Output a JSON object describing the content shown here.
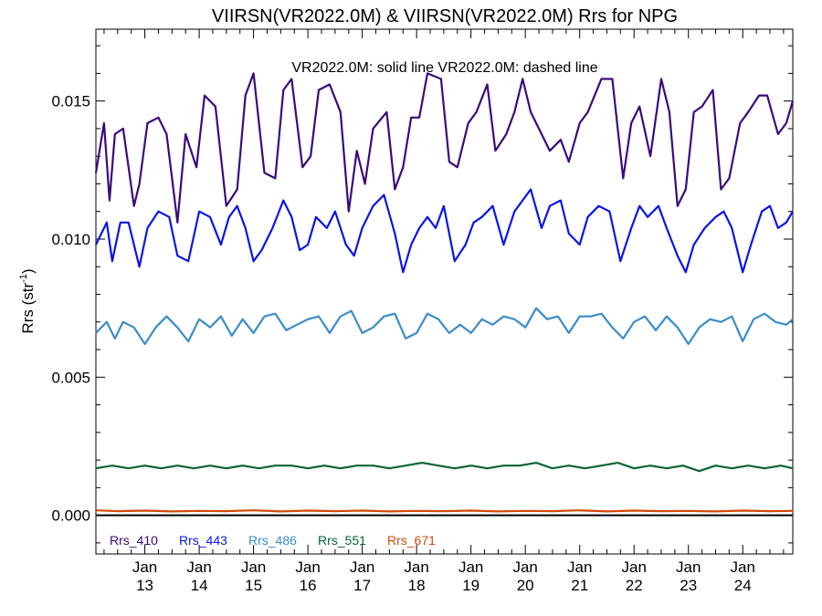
{
  "chart_data": {
    "type": "line",
    "title": "VIIRSN(VR2022.0M) & VIIRSN(VR2022.0M)  Rrs for NPG",
    "annotation": "VR2022.0M: solid line   VR2022.0M: dashed line",
    "xlabel": "",
    "ylabel": "Rrs (str",
    "ylabel_sup": "-1",
    "ylabel_close": ")",
    "x_range": [
      2012.1,
      2024.92
    ],
    "ylim": [
      -0.0014,
      0.0176
    ],
    "y_ticks": [
      0.0,
      0.005,
      0.01,
      0.015
    ],
    "y_tick_labels": [
      "0.000",
      "0.005",
      "0.010",
      "0.015"
    ],
    "x_ticks": [
      {
        "x": 2013.0,
        "top": "Jan",
        "bottom": "13"
      },
      {
        "x": 2014.0,
        "top": "Jan",
        "bottom": "14"
      },
      {
        "x": 2015.0,
        "top": "Jan",
        "bottom": "15"
      },
      {
        "x": 2016.0,
        "top": "Jan",
        "bottom": "16"
      },
      {
        "x": 2017.0,
        "top": "Jan",
        "bottom": "17"
      },
      {
        "x": 2018.0,
        "top": "Jan",
        "bottom": "18"
      },
      {
        "x": 2019.0,
        "top": "Jan",
        "bottom": "19"
      },
      {
        "x": 2020.0,
        "top": "Jan",
        "bottom": "20"
      },
      {
        "x": 2021.0,
        "top": "Jan",
        "bottom": "21"
      },
      {
        "x": 2022.0,
        "top": "Jan",
        "bottom": "22"
      },
      {
        "x": 2023.0,
        "top": "Jan",
        "bottom": "23"
      },
      {
        "x": 2024.0,
        "top": "Jan",
        "bottom": "24"
      }
    ],
    "zero_line": 0.0,
    "series": [
      {
        "name": "Rrs_410",
        "color": "#3b0a7a",
        "x": [
          2012.1,
          2012.25,
          2012.35,
          2012.45,
          2012.6,
          2012.8,
          2012.9,
          2013.05,
          2013.25,
          2013.4,
          2013.6,
          2013.75,
          2013.95,
          2014.1,
          2014.3,
          2014.5,
          2014.7,
          2014.85,
          2015.0,
          2015.2,
          2015.4,
          2015.55,
          2015.7,
          2015.9,
          2016.05,
          2016.2,
          2016.4,
          2016.6,
          2016.75,
          2016.9,
          2017.05,
          2017.2,
          2017.45,
          2017.6,
          2017.75,
          2017.9,
          2018.05,
          2018.2,
          2018.45,
          2018.6,
          2018.75,
          2018.95,
          2019.1,
          2019.3,
          2019.45,
          2019.65,
          2019.8,
          2019.95,
          2020.1,
          2020.3,
          2020.45,
          2020.65,
          2020.8,
          2021.0,
          2021.15,
          2021.4,
          2021.6,
          2021.8,
          2021.95,
          2022.1,
          2022.3,
          2022.5,
          2022.65,
          2022.8,
          2022.95,
          2023.1,
          2023.25,
          2023.45,
          2023.6,
          2023.75,
          2023.95,
          2024.1,
          2024.3,
          2024.45,
          2024.65,
          2024.8,
          2024.92
        ],
        "values": [
          0.0124,
          0.0142,
          0.0114,
          0.0138,
          0.014,
          0.0112,
          0.012,
          0.0142,
          0.0144,
          0.0138,
          0.0106,
          0.0138,
          0.0126,
          0.0152,
          0.0148,
          0.0112,
          0.0118,
          0.0152,
          0.016,
          0.0124,
          0.0122,
          0.0154,
          0.0158,
          0.0126,
          0.013,
          0.0154,
          0.0156,
          0.0146,
          0.011,
          0.0132,
          0.012,
          0.014,
          0.0146,
          0.0118,
          0.0126,
          0.0144,
          0.0144,
          0.016,
          0.0158,
          0.0128,
          0.0126,
          0.0142,
          0.0146,
          0.0156,
          0.0132,
          0.0138,
          0.0146,
          0.0158,
          0.0146,
          0.0138,
          0.0132,
          0.0136,
          0.0128,
          0.0142,
          0.0146,
          0.0158,
          0.0158,
          0.0122,
          0.0142,
          0.0148,
          0.013,
          0.0158,
          0.0146,
          0.0112,
          0.0118,
          0.0146,
          0.0148,
          0.0154,
          0.0118,
          0.0122,
          0.0142,
          0.0146,
          0.0152,
          0.0152,
          0.0138,
          0.0142,
          0.015
        ]
      },
      {
        "name": "Rrs_443",
        "color": "#0a14e6",
        "x": [
          2012.1,
          2012.3,
          2012.4,
          2012.55,
          2012.7,
          2012.9,
          2013.05,
          2013.25,
          2013.45,
          2013.6,
          2013.8,
          2014.0,
          2014.2,
          2014.4,
          2014.55,
          2014.7,
          2014.85,
          2015.0,
          2015.15,
          2015.35,
          2015.55,
          2015.7,
          2015.85,
          2016.0,
          2016.15,
          2016.35,
          2016.5,
          2016.7,
          2016.85,
          2017.0,
          2017.2,
          2017.4,
          2017.6,
          2017.75,
          2017.9,
          2018.05,
          2018.2,
          2018.35,
          2018.5,
          2018.7,
          2018.9,
          2019.05,
          2019.2,
          2019.4,
          2019.6,
          2019.8,
          2019.95,
          2020.1,
          2020.3,
          2020.45,
          2020.65,
          2020.8,
          2021.0,
          2021.15,
          2021.35,
          2021.55,
          2021.75,
          2021.95,
          2022.1,
          2022.25,
          2022.45,
          2022.6,
          2022.8,
          2022.95,
          2023.1,
          2023.3,
          2023.5,
          2023.65,
          2023.8,
          2024.0,
          2024.15,
          2024.35,
          2024.5,
          2024.65,
          2024.8,
          2024.92
        ],
        "values": [
          0.0098,
          0.0106,
          0.0092,
          0.0106,
          0.0106,
          0.009,
          0.0104,
          0.011,
          0.0108,
          0.0094,
          0.0092,
          0.011,
          0.0108,
          0.0098,
          0.0108,
          0.0112,
          0.0104,
          0.0092,
          0.0096,
          0.0104,
          0.0114,
          0.0108,
          0.0096,
          0.0098,
          0.0108,
          0.0104,
          0.011,
          0.0098,
          0.0094,
          0.0104,
          0.0112,
          0.0116,
          0.0102,
          0.0088,
          0.0098,
          0.0104,
          0.0108,
          0.0104,
          0.0112,
          0.0092,
          0.0098,
          0.0106,
          0.0108,
          0.0112,
          0.0098,
          0.011,
          0.0114,
          0.0118,
          0.0104,
          0.0112,
          0.0114,
          0.0102,
          0.0098,
          0.0108,
          0.0112,
          0.011,
          0.0092,
          0.0104,
          0.0112,
          0.0108,
          0.0112,
          0.0104,
          0.0094,
          0.0088,
          0.0098,
          0.0104,
          0.0108,
          0.011,
          0.0104,
          0.0088,
          0.0098,
          0.011,
          0.0112,
          0.0104,
          0.0106,
          0.011
        ]
      },
      {
        "name": "Rrs_486",
        "color": "#3a8cc8",
        "x": [
          2012.1,
          2012.3,
          2012.45,
          2012.6,
          2012.8,
          2013.0,
          2013.2,
          2013.4,
          2013.6,
          2013.8,
          2014.0,
          2014.2,
          2014.4,
          2014.6,
          2014.8,
          2015.0,
          2015.2,
          2015.4,
          2015.6,
          2015.8,
          2016.0,
          2016.2,
          2016.4,
          2016.6,
          2016.8,
          2017.0,
          2017.2,
          2017.4,
          2017.6,
          2017.8,
          2018.0,
          2018.2,
          2018.4,
          2018.6,
          2018.8,
          2019.0,
          2019.2,
          2019.4,
          2019.6,
          2019.8,
          2020.0,
          2020.2,
          2020.4,
          2020.6,
          2020.8,
          2021.0,
          2021.2,
          2021.4,
          2021.6,
          2021.8,
          2022.0,
          2022.2,
          2022.4,
          2022.6,
          2022.8,
          2023.0,
          2023.2,
          2023.4,
          2023.6,
          2023.8,
          2024.0,
          2024.2,
          2024.4,
          2024.6,
          2024.8,
          2024.92
        ],
        "values": [
          0.0066,
          0.007,
          0.0064,
          0.007,
          0.0068,
          0.0062,
          0.0068,
          0.0072,
          0.0068,
          0.0063,
          0.0071,
          0.0068,
          0.0072,
          0.0065,
          0.0071,
          0.0066,
          0.0072,
          0.0073,
          0.0067,
          0.0069,
          0.0071,
          0.0072,
          0.0066,
          0.0072,
          0.0074,
          0.0066,
          0.0068,
          0.0072,
          0.0073,
          0.0064,
          0.0066,
          0.0073,
          0.0071,
          0.0066,
          0.0069,
          0.0066,
          0.0071,
          0.0069,
          0.0072,
          0.0071,
          0.0068,
          0.0075,
          0.0071,
          0.0072,
          0.0066,
          0.0072,
          0.0072,
          0.0073,
          0.0068,
          0.0064,
          0.007,
          0.0072,
          0.0067,
          0.0072,
          0.0068,
          0.0062,
          0.0068,
          0.0071,
          0.007,
          0.0072,
          0.0063,
          0.0071,
          0.0073,
          0.007,
          0.0069,
          0.0071
        ]
      },
      {
        "name": "Rrs_551",
        "color": "#0a6432",
        "x": [
          2012.1,
          2012.4,
          2012.7,
          2013.0,
          2013.3,
          2013.6,
          2013.9,
          2014.2,
          2014.5,
          2014.8,
          2015.1,
          2015.4,
          2015.7,
          2016.0,
          2016.3,
          2016.6,
          2016.9,
          2017.2,
          2017.5,
          2017.8,
          2018.1,
          2018.4,
          2018.7,
          2019.0,
          2019.3,
          2019.6,
          2019.9,
          2020.2,
          2020.5,
          2020.8,
          2021.1,
          2021.4,
          2021.7,
          2022.0,
          2022.3,
          2022.6,
          2022.9,
          2023.2,
          2023.5,
          2023.8,
          2024.1,
          2024.4,
          2024.7,
          2024.92
        ],
        "values": [
          0.0017,
          0.0018,
          0.0017,
          0.0018,
          0.0017,
          0.0018,
          0.0017,
          0.0018,
          0.0017,
          0.0018,
          0.0017,
          0.0018,
          0.0018,
          0.0017,
          0.0018,
          0.0017,
          0.0018,
          0.0018,
          0.0017,
          0.0018,
          0.0019,
          0.0018,
          0.0017,
          0.0018,
          0.0017,
          0.0018,
          0.0018,
          0.0019,
          0.0017,
          0.0018,
          0.0017,
          0.0018,
          0.0019,
          0.0017,
          0.0018,
          0.0017,
          0.0018,
          0.0016,
          0.0018,
          0.0017,
          0.0018,
          0.0017,
          0.0018,
          0.0017
        ]
      },
      {
        "name": "Rrs_671",
        "color": "#d24a0a",
        "x": [
          2012.1,
          2012.5,
          2013.0,
          2013.5,
          2014.0,
          2014.5,
          2015.0,
          2015.5,
          2016.0,
          2016.5,
          2017.0,
          2017.5,
          2018.0,
          2018.5,
          2019.0,
          2019.5,
          2020.0,
          2020.5,
          2021.0,
          2021.5,
          2022.0,
          2022.5,
          2023.0,
          2023.5,
          2024.0,
          2024.5,
          2024.92
        ],
        "values": [
          0.00018,
          0.00015,
          0.00017,
          0.00014,
          0.00016,
          0.00015,
          0.00018,
          0.00014,
          0.00017,
          0.00015,
          0.00017,
          0.00014,
          0.00016,
          0.00015,
          0.00017,
          0.00014,
          0.00016,
          0.00015,
          0.00018,
          0.00014,
          0.00017,
          0.00015,
          0.00016,
          0.00014,
          0.00017,
          0.00015,
          0.00016
        ]
      }
    ]
  }
}
